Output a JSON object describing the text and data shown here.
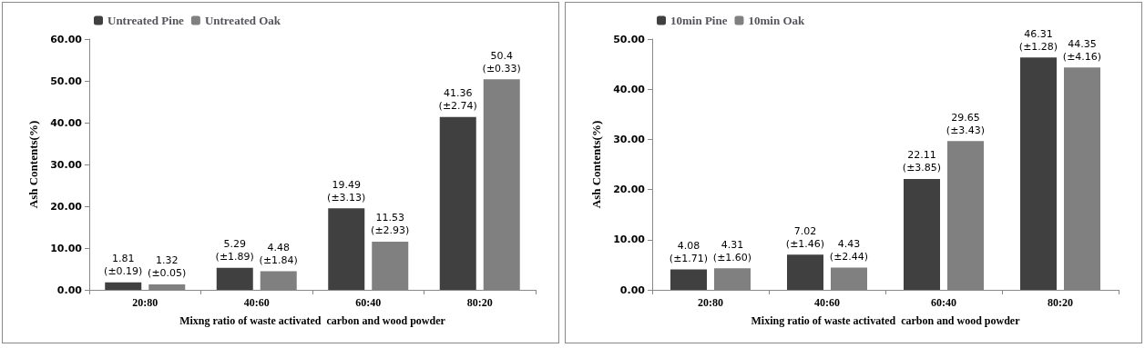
{
  "chart_data": [
    {
      "type": "bar",
      "categories": [
        "20:80",
        "40:60",
        "60:40",
        "80:20"
      ],
      "xlabel": "Mixng ratio of waste activated  carbon and wood powder",
      "ylabel": "Ash Contents(%)",
      "ylim": [
        0,
        60
      ],
      "yticks": [
        {
          "value": 0,
          "label": "0.00"
        },
        {
          "value": 10,
          "label": "10.00"
        },
        {
          "value": 20,
          "label": "20.00"
        },
        {
          "value": 30,
          "label": "30.00"
        },
        {
          "value": 40,
          "label": "40.00"
        },
        {
          "value": 50,
          "label": "50.00"
        },
        {
          "value": 60,
          "label": "60.00"
        }
      ],
      "legend": "top left",
      "series": [
        {
          "name": "Untreated Pine",
          "color": "#404040",
          "values": [
            1.81,
            5.29,
            19.49,
            41.36
          ],
          "value_labels": [
            "1.81\n(±0.19)",
            "5.29\n(±1.89)",
            "19.49\n(±3.13)",
            "41.36\n(±2.74)"
          ]
        },
        {
          "name": "Untreated Oak",
          "color": "#808080",
          "values": [
            1.32,
            4.48,
            11.53,
            50.4
          ],
          "value_labels": [
            "1.32\n(±0.05)",
            "4.48\n(±1.84)",
            "11.53\n(±2.93)",
            "50.4\n(±0.33)"
          ]
        }
      ]
    },
    {
      "type": "bar",
      "categories": [
        "20:80",
        "40:60",
        "60:40",
        "80:20"
      ],
      "xlabel": "Mixing ratio of waste activated  carbon and wood powder",
      "ylabel": "Ash Contents(%)",
      "ylim": [
        0,
        50
      ],
      "yticks": [
        {
          "value": 0,
          "label": "0.00"
        },
        {
          "value": 10,
          "label": "10.00"
        },
        {
          "value": 20,
          "label": "20.00"
        },
        {
          "value": 30,
          "label": "30.00"
        },
        {
          "value": 40,
          "label": "40.00"
        },
        {
          "value": 50,
          "label": "50.00"
        }
      ],
      "legend": "top left",
      "series": [
        {
          "name": "10min Pine",
          "color": "#404040",
          "values": [
            4.08,
            7.02,
            22.11,
            46.31
          ],
          "value_labels": [
            "4.08\n(±1.71)",
            "7.02\n(±1.46)",
            "22.11\n(±3.85)",
            "46.31\n(±1.28)"
          ]
        },
        {
          "name": "10min Oak",
          "color": "#808080",
          "values": [
            4.31,
            4.43,
            29.65,
            44.35
          ],
          "value_labels": [
            "4.31\n(±1.60)",
            "4.43\n(±2.44)",
            "29.65\n(±3.43)",
            "44.35\n(±4.16)"
          ]
        }
      ]
    }
  ]
}
